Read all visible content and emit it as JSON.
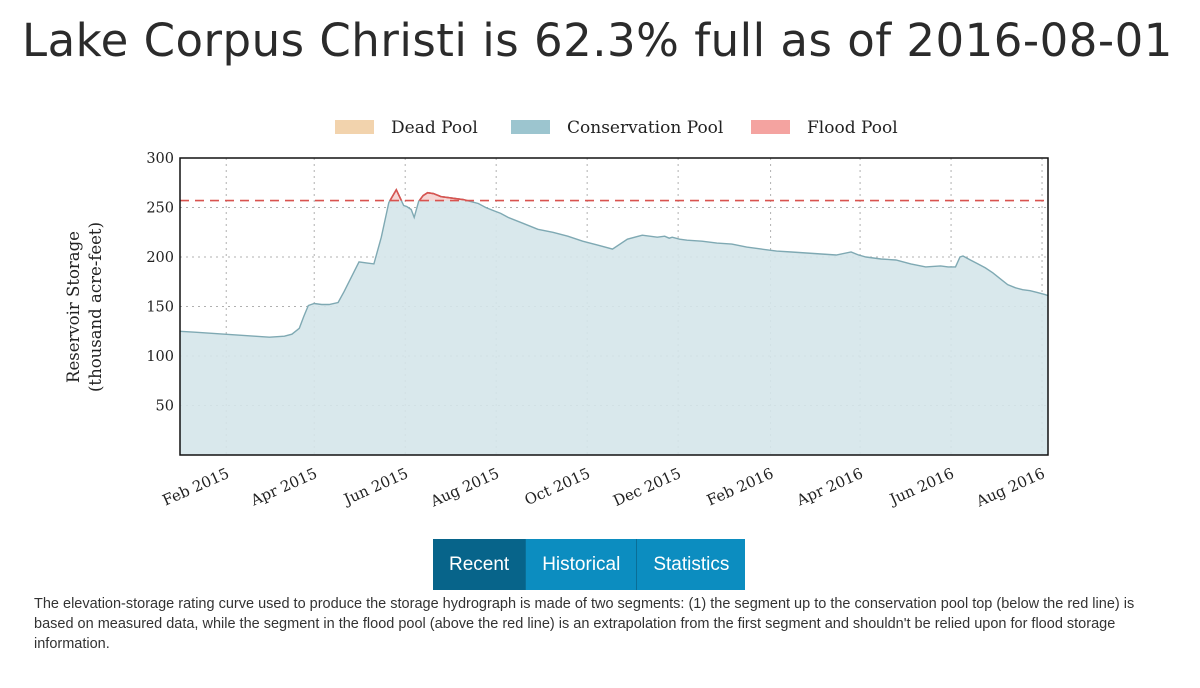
{
  "title": "Lake Corpus Christi is 62.3% full as of 2016-08-01",
  "chart_data": {
    "type": "area",
    "ylabel_line1": "Reservoir Storage",
    "ylabel_line2": "(thousand acre-feet)",
    "xlabel": "",
    "ylim": [
      0,
      300
    ],
    "yticks": [
      50,
      100,
      150,
      200,
      250,
      300
    ],
    "xlim_days": [
      0,
      582
    ],
    "x_origin": "2015-01-01",
    "xticks": [
      {
        "label": "Feb 2015",
        "day": 31
      },
      {
        "label": "Apr 2015",
        "day": 90
      },
      {
        "label": "Jun 2015",
        "day": 151
      },
      {
        "label": "Aug 2015",
        "day": 212
      },
      {
        "label": "Oct 2015",
        "day": 273
      },
      {
        "label": "Dec 2015",
        "day": 334
      },
      {
        "label": "Feb 2016",
        "day": 396
      },
      {
        "label": "Apr 2016",
        "day": 456
      },
      {
        "label": "Jun 2016",
        "day": 517
      },
      {
        "label": "Aug 2016",
        "day": 578
      }
    ],
    "conservation_pool_top": 257,
    "legend": [
      {
        "name": "Dead Pool",
        "color": "#f2d3ad"
      },
      {
        "name": "Conservation Pool",
        "color": "#9cc5cf"
      },
      {
        "name": "Flood Pool",
        "color": "#f4a3a0"
      }
    ],
    "series": [
      {
        "name": "Reservoir Storage",
        "x_days": [
          0,
          10,
          20,
          30,
          40,
          50,
          60,
          70,
          75,
          80,
          83,
          86,
          90,
          95,
          100,
          106,
          110,
          115,
          120,
          125,
          130,
          135,
          140,
          145,
          150,
          152,
          155,
          157,
          160,
          163,
          166,
          170,
          175,
          180,
          185,
          190,
          195,
          200,
          205,
          210,
          215,
          220,
          230,
          240,
          250,
          260,
          270,
          280,
          290,
          300,
          310,
          320,
          325,
          328,
          330,
          335,
          340,
          350,
          360,
          370,
          380,
          390,
          400,
          410,
          420,
          430,
          440,
          450,
          455,
          460,
          465,
          470,
          480,
          490,
          500,
          510,
          515,
          520,
          523,
          525,
          530,
          535,
          540,
          545,
          550,
          555,
          560,
          565,
          570,
          575,
          580,
          582
        ],
        "values": [
          125,
          124,
          123,
          122,
          121,
          120,
          119,
          120,
          122,
          128,
          140,
          151,
          153,
          152,
          152,
          154,
          165,
          180,
          195,
          194,
          193,
          220,
          255,
          268,
          252,
          251,
          248,
          240,
          256,
          262,
          265,
          264,
          261,
          260,
          259,
          258,
          256,
          254,
          250,
          247,
          244,
          240,
          234,
          228,
          225,
          221,
          216,
          212,
          208,
          218,
          222,
          220,
          221,
          219,
          220,
          218,
          217,
          216,
          214,
          213,
          210,
          208,
          206,
          205,
          204,
          203,
          202,
          205,
          202,
          200,
          199,
          198,
          197,
          193,
          190,
          191,
          190,
          190,
          200,
          201,
          197,
          193,
          189,
          184,
          178,
          172,
          169,
          167,
          166,
          164,
          162,
          161
        ]
      }
    ]
  },
  "tabs": [
    {
      "label": "Recent",
      "active": true
    },
    {
      "label": "Historical",
      "active": false
    },
    {
      "label": "Statistics",
      "active": false
    }
  ],
  "note": "The elevation-storage rating curve used to produce the storage hydrograph is made of two segments: (1) the segment up to the conservation pool top (below the red line) is based on measured data, while the segment in the flood pool (above the red line) is an extrapolation from the first segment and shouldn't be relied upon for flood storage information."
}
